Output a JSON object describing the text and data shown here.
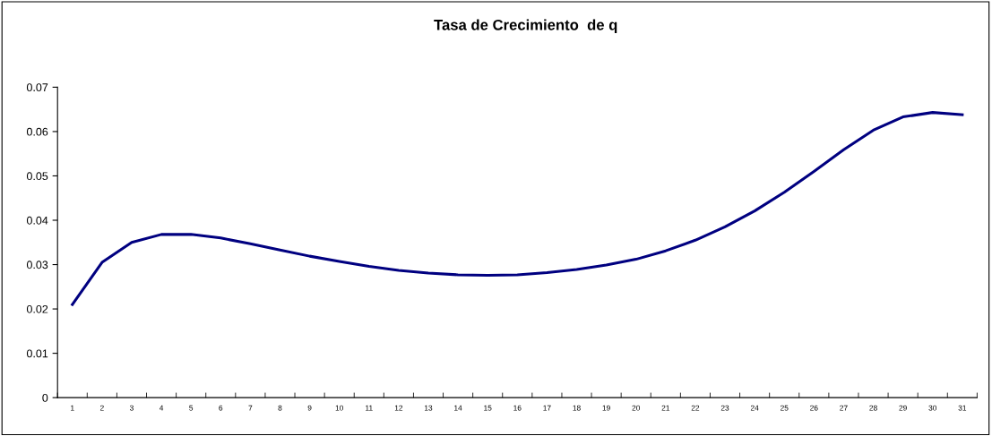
{
  "chart_data": {
    "type": "line",
    "title": "Tasa de Crecimiento  de q",
    "categories": [
      "1",
      "2",
      "3",
      "4",
      "5",
      "6",
      "7",
      "8",
      "9",
      "10",
      "11",
      "12",
      "13",
      "14",
      "15",
      "16",
      "17",
      "18",
      "19",
      "20",
      "21",
      "22",
      "23",
      "24",
      "25",
      "26",
      "27",
      "28",
      "29",
      "30",
      "31"
    ],
    "series": [
      {
        "color": "#000080",
        "values": [
          0.021,
          0.0305,
          0.035,
          0.0368,
          0.0368,
          0.036,
          0.0347,
          0.0333,
          0.0319,
          0.0307,
          0.0296,
          0.0287,
          0.0281,
          0.0277,
          0.0276,
          0.0277,
          0.0282,
          0.0289,
          0.0299,
          0.0312,
          0.0331,
          0.0355,
          0.0385,
          0.0421,
          0.0463,
          0.051,
          0.0559,
          0.0603,
          0.0633,
          0.0643,
          0.0638
        ]
      }
    ],
    "ylim": [
      0,
      0.07
    ],
    "yticks": [
      0,
      0.01,
      0.02,
      0.03,
      0.04,
      0.05,
      0.06,
      0.07
    ],
    "grid": false,
    "legend": false,
    "marker": "none",
    "line_style": "solid"
  }
}
